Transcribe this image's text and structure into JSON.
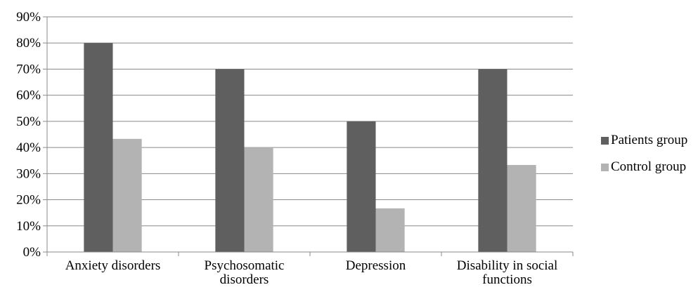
{
  "chart_data": {
    "type": "bar",
    "categories": [
      "Anxiety disorders",
      "Psychosomatic disorders",
      "Depression",
      "Disability in social functions"
    ],
    "category_lines": [
      [
        "Anxiety disorders"
      ],
      [
        "Psychosomatic",
        "disorders"
      ],
      [
        "Depression"
      ],
      [
        "Disability in social",
        "functions"
      ]
    ],
    "series": [
      {
        "name": "Patients group",
        "values": [
          80,
          70,
          50,
          70
        ],
        "color": "#5f5f5f"
      },
      {
        "name": "Control group",
        "values": [
          43.3,
          40,
          16.7,
          33.3
        ],
        "color": "#b3b3b3"
      }
    ],
    "yticks": [
      "0%",
      "10%",
      "20%",
      "30%",
      "40%",
      "50%",
      "60%",
      "70%",
      "80%",
      "90%"
    ],
    "ylim": [
      0,
      90
    ],
    "grid": true,
    "legend_position": "right"
  }
}
